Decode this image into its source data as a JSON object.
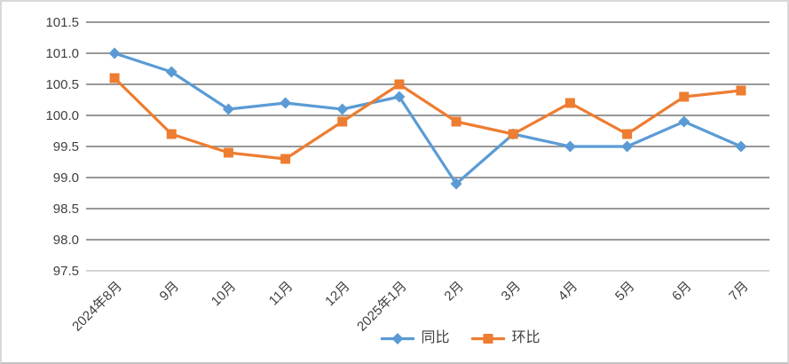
{
  "chart_data": {
    "type": "line",
    "title": "",
    "categories": [
      "2024年8月",
      "9月",
      "10月",
      "11月",
      "12月",
      "2025年1月",
      "2月",
      "3月",
      "4月",
      "5月",
      "6月",
      "7月"
    ],
    "series": [
      {
        "name": "同比",
        "color": "#5B9BD5",
        "marker": "diamond",
        "values": [
          101.0,
          100.7,
          100.1,
          100.2,
          100.1,
          100.3,
          98.9,
          99.7,
          99.5,
          99.5,
          99.9,
          99.5
        ]
      },
      {
        "name": "环比",
        "color": "#ED7D31",
        "marker": "square",
        "values": [
          100.6,
          99.7,
          99.4,
          99.3,
          99.9,
          100.5,
          99.9,
          99.7,
          100.2,
          99.7,
          100.3,
          100.4
        ]
      }
    ],
    "ylim": [
      97.5,
      101.5
    ],
    "ytick_step": 0.5,
    "ytick_labels": [
      "101.5",
      "101.0",
      "100.5",
      "100.0",
      "99.5",
      "99.0",
      "98.5",
      "98.0",
      "97.5"
    ],
    "grid": "horizontal",
    "gridline_color": "#8A8A8A",
    "axisline_color": "#CFCDCD",
    "text_color": "#3F3F3F",
    "legend_position": "bottom-center"
  }
}
